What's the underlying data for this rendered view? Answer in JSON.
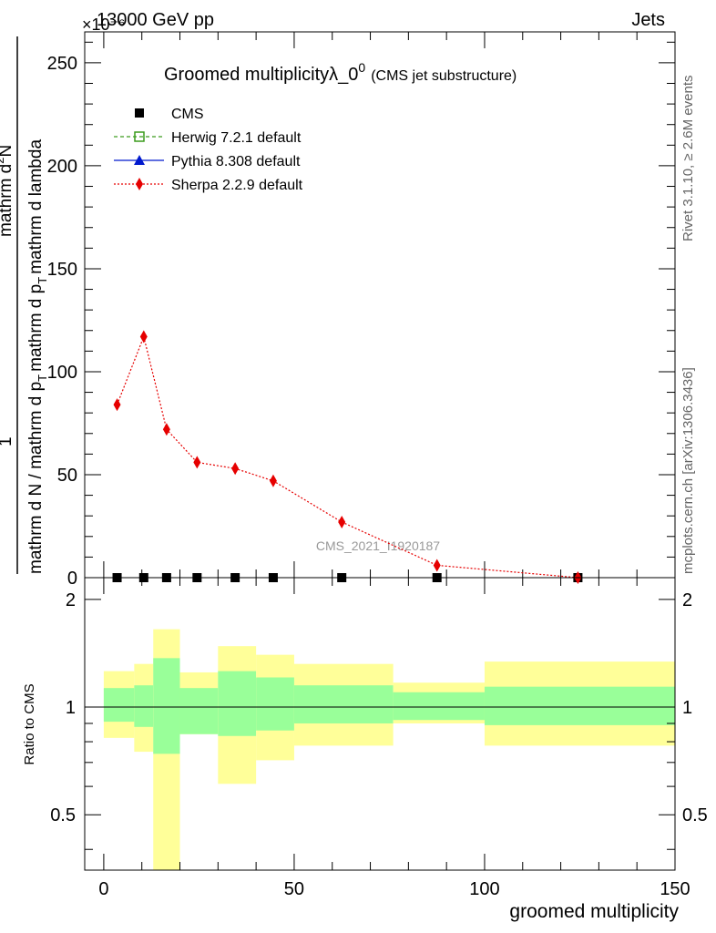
{
  "header": {
    "energy": "13000 GeV pp",
    "exponent_label": "×10⁻⁶",
    "process": "Jets"
  },
  "side_labels": {
    "rivet": "Rivet 3.1.10, ≥ 2.6M events",
    "mcplots": "mcplots.cern.ch [arXiv:1306.3436]"
  },
  "chart_data": [
    {
      "type": "scatter",
      "title": "Groomed multiplicityλ_0",
      "title_sup": "0",
      "subtitle": "(CMS jet substructure)",
      "watermark": "CMS_2021_I1920187",
      "ylabel": {
        "lower": "mathrm d N / mathrm d p",
        "lower_sub": "T",
        "lower_tail": "mathrm d p",
        "lower_tail_sub": "T",
        "lower_end": "mathrm d lambda",
        "numerator": "1",
        "upper": "mathrm d",
        "upper_sup": "2",
        "upper_end": "N"
      },
      "xlim": [
        -5,
        150
      ],
      "ylim": [
        0,
        265
      ],
      "yticks": [
        0,
        50,
        100,
        150,
        200,
        250
      ],
      "legend": [
        {
          "name": "CMS",
          "marker": "square-filled",
          "color": "#000000"
        },
        {
          "name": "Herwig 7.2.1 default",
          "marker": "square-open",
          "color": "#3a9b1c",
          "line": "dashed"
        },
        {
          "name": "Pythia 8.308 default",
          "marker": "triangle",
          "color": "#0019ce",
          "line": "solid"
        },
        {
          "name": "Sherpa 2.2.9 default",
          "marker": "diamond",
          "color": "#e60000",
          "line": "dotted"
        }
      ],
      "series": [
        {
          "name": "Sherpa 2.2.9 default",
          "x": [
            3.5,
            10.5,
            16.5,
            24.5,
            34.5,
            44.5,
            62.5,
            87.5,
            124.5
          ],
          "y": [
            84,
            117,
            72,
            56,
            53,
            47,
            27,
            6,
            0
          ]
        },
        {
          "name": "CMS",
          "x": [
            3.5,
            10.5,
            16.5,
            24.5,
            34.5,
            44.5,
            62.5,
            87.5,
            124.5
          ],
          "y": [
            0,
            0,
            0,
            0,
            0,
            0,
            0,
            0,
            0
          ]
        }
      ]
    },
    {
      "type": "area",
      "ylabel": "Ratio to CMS",
      "xlabel": "groomed multiplicity",
      "xlim": [
        -5,
        150
      ],
      "ylim": [
        0.35,
        2.3
      ],
      "xticks": [
        0,
        50,
        100,
        150
      ],
      "yticks": [
        0.5,
        1,
        2
      ],
      "ytick_labels": [
        "0.5",
        "1",
        "2"
      ],
      "reference_line": 1,
      "bands": [
        {
          "x0": 0,
          "x1": 8,
          "inner": [
            0.91,
            1.13
          ],
          "outer": [
            0.82,
            1.26
          ]
        },
        {
          "x0": 8,
          "x1": 13,
          "inner": [
            0.88,
            1.15
          ],
          "outer": [
            0.75,
            1.32
          ]
        },
        {
          "x0": 13,
          "x1": 20,
          "inner": [
            0.74,
            1.37
          ],
          "outer": [
            0.35,
            1.65
          ]
        },
        {
          "x0": 20,
          "x1": 30,
          "inner": [
            0.84,
            1.13
          ],
          "outer": [
            0.84,
            1.25
          ]
        },
        {
          "x0": 30,
          "x1": 40,
          "inner": [
            0.83,
            1.26
          ],
          "outer": [
            0.61,
            1.48
          ]
        },
        {
          "x0": 40,
          "x1": 50,
          "inner": [
            0.86,
            1.21
          ],
          "outer": [
            0.71,
            1.4
          ]
        },
        {
          "x0": 50,
          "x1": 76,
          "inner": [
            0.9,
            1.15
          ],
          "outer": [
            0.78,
            1.32
          ]
        },
        {
          "x0": 76,
          "x1": 100,
          "inner": [
            0.92,
            1.1
          ],
          "outer": [
            0.9,
            1.17
          ]
        },
        {
          "x0": 100,
          "x1": 150,
          "inner": [
            0.89,
            1.14
          ],
          "outer": [
            0.78,
            1.34
          ]
        }
      ]
    }
  ]
}
